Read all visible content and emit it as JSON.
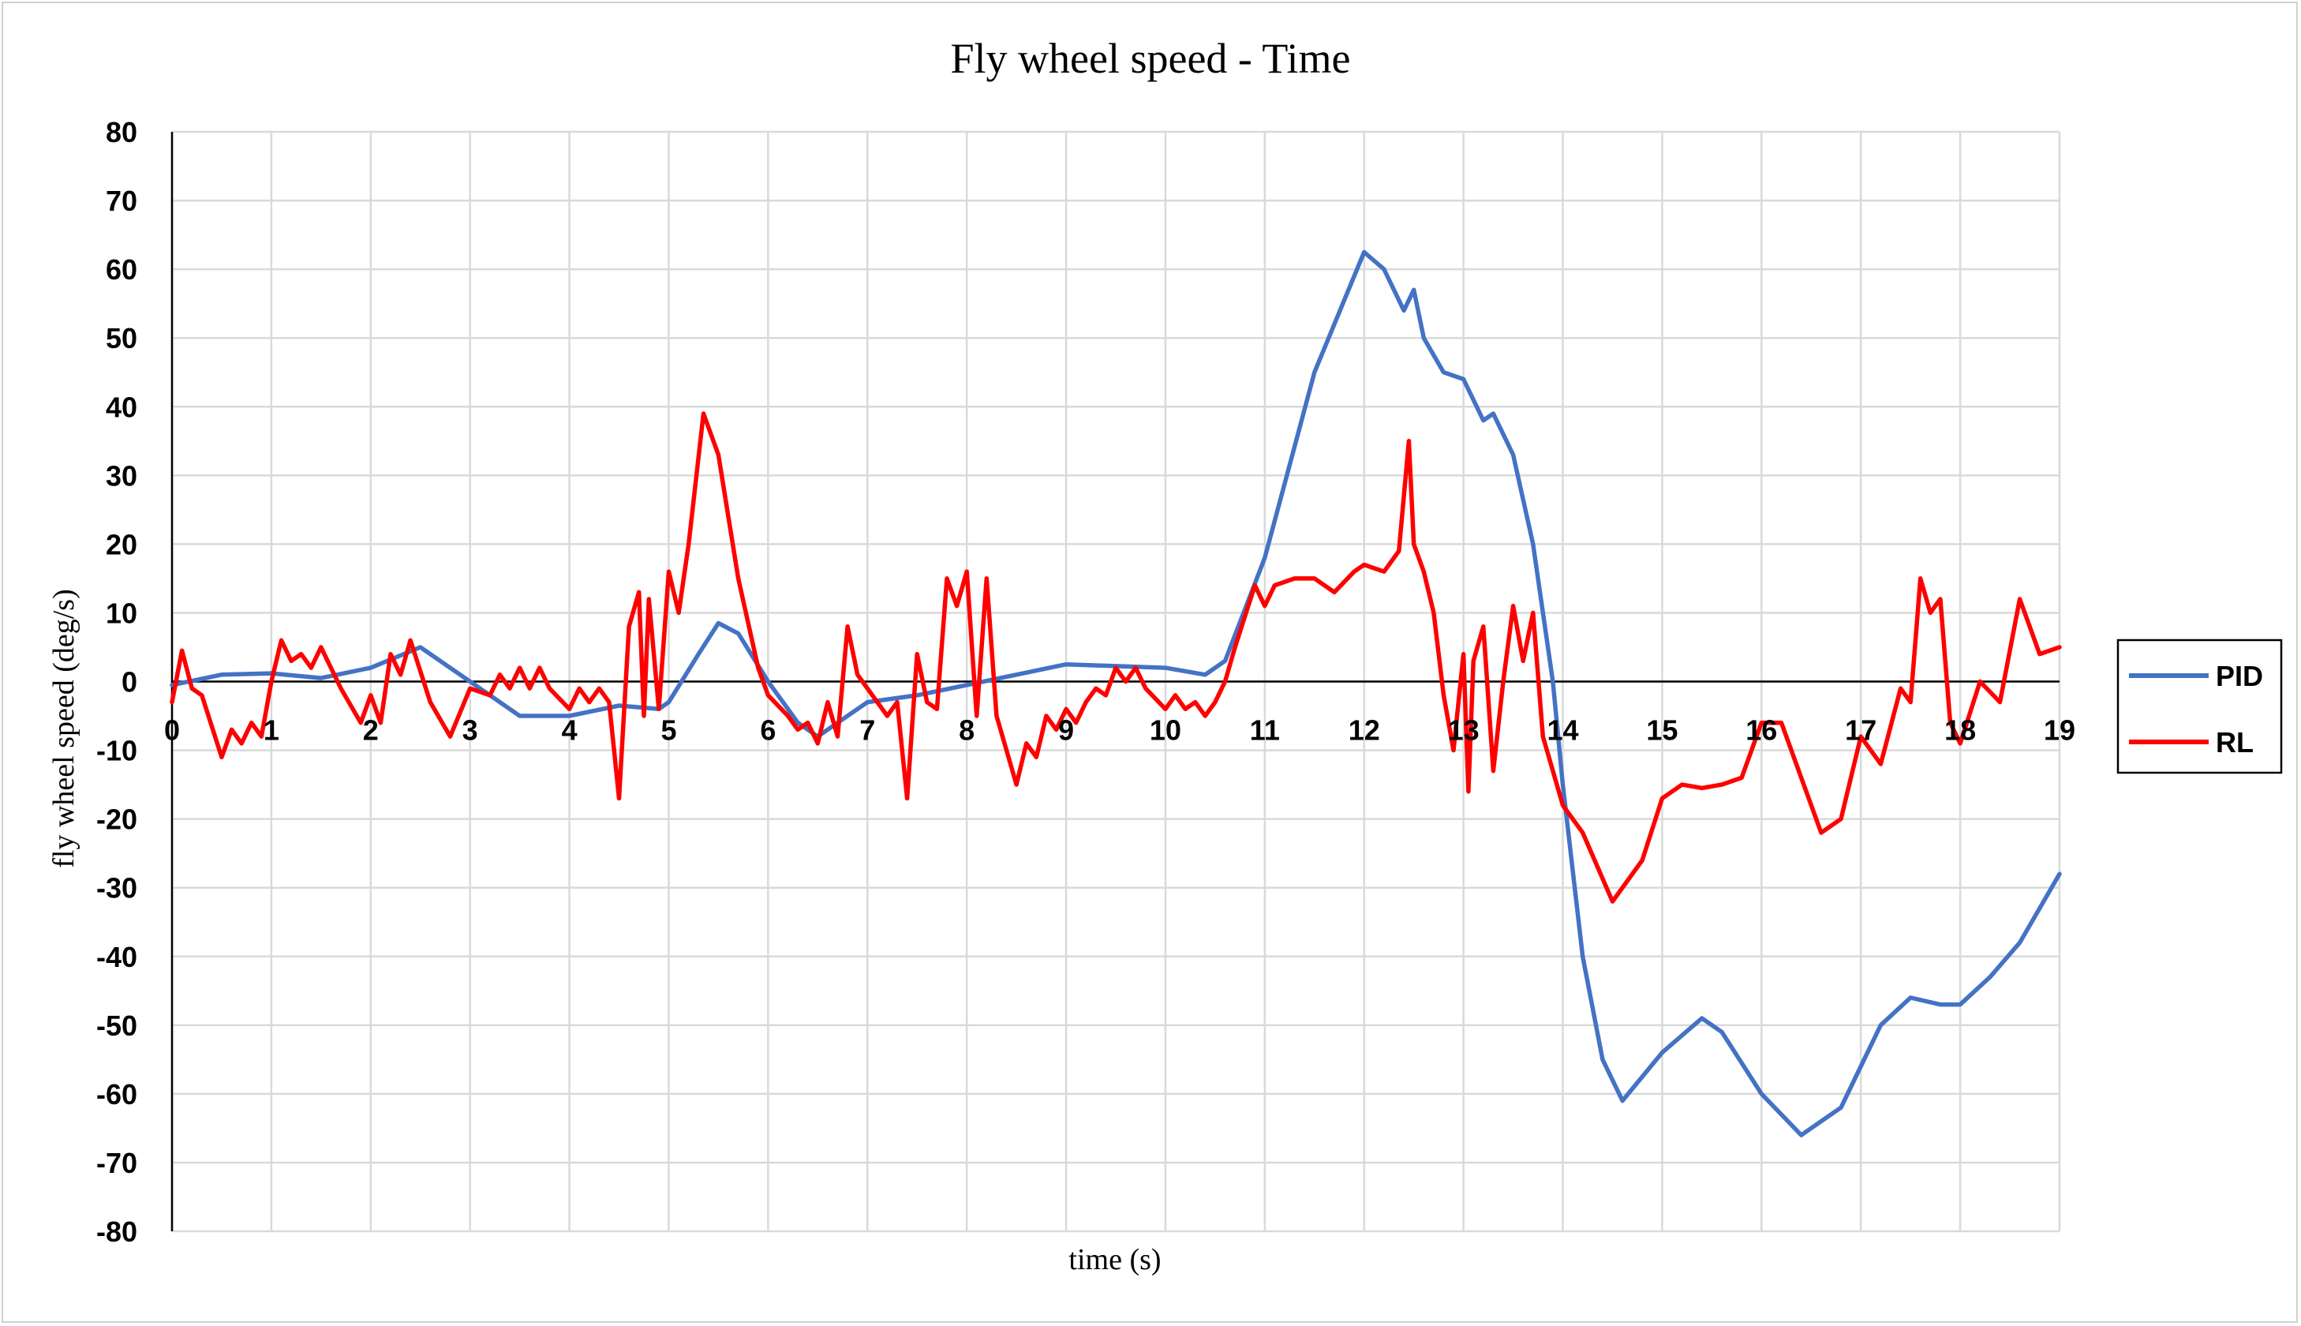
{
  "chart_data": {
    "type": "line",
    "title": "Fly wheel speed - Time",
    "xlabel": "time (s)",
    "ylabel": "fly wheel speed (deg/s)",
    "xlim": [
      0,
      19
    ],
    "ylim": [
      -80,
      80
    ],
    "x_ticks": [
      "0",
      "1",
      "2",
      "3",
      "4",
      "5",
      "6",
      "7",
      "8",
      "9",
      "10",
      "11",
      "12",
      "13",
      "14",
      "15",
      "16",
      "17",
      "18",
      "19"
    ],
    "y_ticks": [
      "80",
      "70",
      "60",
      "50",
      "40",
      "30",
      "20",
      "10",
      "0",
      "-10",
      "-20",
      "-30",
      "-40",
      "-50",
      "-60",
      "-70",
      "-80"
    ],
    "grid": true,
    "legend_position": "right",
    "series": [
      {
        "name": "PID",
        "color": "#4472C4",
        "points": [
          [
            0,
            -0.5
          ],
          [
            0.5,
            1
          ],
          [
            1,
            1.2
          ],
          [
            1.5,
            0.5
          ],
          [
            2,
            2
          ],
          [
            2.5,
            5
          ],
          [
            2.8,
            2
          ],
          [
            3,
            0
          ],
          [
            3.5,
            -5
          ],
          [
            4,
            -5
          ],
          [
            4.5,
            -3.5
          ],
          [
            4.9,
            -4
          ],
          [
            5,
            -3
          ],
          [
            5.3,
            4
          ],
          [
            5.5,
            8.5
          ],
          [
            5.7,
            7
          ],
          [
            6,
            0
          ],
          [
            6.3,
            -6
          ],
          [
            6.5,
            -8
          ],
          [
            7,
            -3
          ],
          [
            7.5,
            -2
          ],
          [
            8,
            -0.5
          ],
          [
            8.5,
            1
          ],
          [
            9,
            2.5
          ],
          [
            10,
            2
          ],
          [
            10.4,
            1
          ],
          [
            10.6,
            3
          ],
          [
            11,
            18
          ],
          [
            11.5,
            45
          ],
          [
            12,
            62.5
          ],
          [
            12.2,
            60
          ],
          [
            12.4,
            54
          ],
          [
            12.5,
            57
          ],
          [
            12.6,
            50
          ],
          [
            12.8,
            45
          ],
          [
            13,
            44
          ],
          [
            13.2,
            38
          ],
          [
            13.3,
            39
          ],
          [
            13.5,
            33
          ],
          [
            13.7,
            20
          ],
          [
            13.9,
            0
          ],
          [
            14,
            -15
          ],
          [
            14.2,
            -40
          ],
          [
            14.4,
            -55
          ],
          [
            14.6,
            -61
          ],
          [
            15,
            -54
          ],
          [
            15.4,
            -49
          ],
          [
            15.6,
            -51
          ],
          [
            16,
            -60
          ],
          [
            16.4,
            -66
          ],
          [
            16.8,
            -62
          ],
          [
            17,
            -56
          ],
          [
            17.2,
            -50
          ],
          [
            17.5,
            -46
          ],
          [
            17.8,
            -47
          ],
          [
            18,
            -47
          ],
          [
            18.3,
            -43
          ],
          [
            18.6,
            -38
          ],
          [
            19,
            -28
          ]
        ]
      },
      {
        "name": "RL",
        "color": "#FF0000",
        "points": [
          [
            0,
            -3
          ],
          [
            0.1,
            4.5
          ],
          [
            0.2,
            -1
          ],
          [
            0.3,
            -2
          ],
          [
            0.5,
            -11
          ],
          [
            0.6,
            -7
          ],
          [
            0.7,
            -9
          ],
          [
            0.8,
            -6
          ],
          [
            0.9,
            -8
          ],
          [
            1,
            0
          ],
          [
            1.1,
            6
          ],
          [
            1.2,
            3
          ],
          [
            1.3,
            4
          ],
          [
            1.4,
            2
          ],
          [
            1.5,
            5
          ],
          [
            1.7,
            -1
          ],
          [
            1.9,
            -6
          ],
          [
            2,
            -2
          ],
          [
            2.1,
            -6
          ],
          [
            2.2,
            4
          ],
          [
            2.3,
            1
          ],
          [
            2.4,
            6
          ],
          [
            2.6,
            -3
          ],
          [
            2.8,
            -8
          ],
          [
            3,
            -1
          ],
          [
            3.2,
            -2
          ],
          [
            3.3,
            1
          ],
          [
            3.4,
            -1
          ],
          [
            3.5,
            2
          ],
          [
            3.6,
            -1
          ],
          [
            3.7,
            2
          ],
          [
            3.8,
            -1
          ],
          [
            4,
            -4
          ],
          [
            4.1,
            -1
          ],
          [
            4.2,
            -3
          ],
          [
            4.3,
            -1
          ],
          [
            4.4,
            -3
          ],
          [
            4.5,
            -17
          ],
          [
            4.6,
            8
          ],
          [
            4.7,
            13
          ],
          [
            4.75,
            -5
          ],
          [
            4.8,
            12
          ],
          [
            4.9,
            -4
          ],
          [
            5,
            16
          ],
          [
            5.1,
            10
          ],
          [
            5.2,
            20
          ],
          [
            5.35,
            39
          ],
          [
            5.5,
            33
          ],
          [
            5.7,
            15
          ],
          [
            5.9,
            2
          ],
          [
            6,
            -2
          ],
          [
            6.2,
            -5
          ],
          [
            6.3,
            -7
          ],
          [
            6.4,
            -6
          ],
          [
            6.5,
            -9
          ],
          [
            6.6,
            -3
          ],
          [
            6.7,
            -8
          ],
          [
            6.8,
            8
          ],
          [
            6.9,
            1
          ],
          [
            7,
            -1
          ],
          [
            7.2,
            -5
          ],
          [
            7.3,
            -3
          ],
          [
            7.4,
            -17
          ],
          [
            7.5,
            4
          ],
          [
            7.6,
            -3
          ],
          [
            7.7,
            -4
          ],
          [
            7.8,
            15
          ],
          [
            7.9,
            11
          ],
          [
            8,
            16
          ],
          [
            8.1,
            -5
          ],
          [
            8.2,
            15
          ],
          [
            8.3,
            -5
          ],
          [
            8.5,
            -15
          ],
          [
            8.6,
            -9
          ],
          [
            8.7,
            -11
          ],
          [
            8.8,
            -5
          ],
          [
            8.9,
            -7
          ],
          [
            9,
            -4
          ],
          [
            9.1,
            -6
          ],
          [
            9.2,
            -3
          ],
          [
            9.3,
            -1
          ],
          [
            9.4,
            -2
          ],
          [
            9.5,
            2
          ],
          [
            9.6,
            0
          ],
          [
            9.7,
            2
          ],
          [
            9.8,
            -1
          ],
          [
            10,
            -4
          ],
          [
            10.1,
            -2
          ],
          [
            10.2,
            -4
          ],
          [
            10.3,
            -3
          ],
          [
            10.4,
            -5
          ],
          [
            10.5,
            -3
          ],
          [
            10.6,
            0
          ],
          [
            10.7,
            5
          ],
          [
            10.9,
            14
          ],
          [
            11,
            11
          ],
          [
            11.1,
            14
          ],
          [
            11.3,
            15
          ],
          [
            11.5,
            15
          ],
          [
            11.7,
            13
          ],
          [
            11.9,
            16
          ],
          [
            12,
            17
          ],
          [
            12.2,
            16
          ],
          [
            12.35,
            19
          ],
          [
            12.45,
            35
          ],
          [
            12.5,
            20
          ],
          [
            12.6,
            16
          ],
          [
            12.7,
            10
          ],
          [
            12.8,
            -2
          ],
          [
            12.9,
            -10
          ],
          [
            13,
            4
          ],
          [
            13.05,
            -16
          ],
          [
            13.1,
            3
          ],
          [
            13.2,
            8
          ],
          [
            13.3,
            -13
          ],
          [
            13.4,
            0
          ],
          [
            13.5,
            11
          ],
          [
            13.6,
            3
          ],
          [
            13.7,
            10
          ],
          [
            13.8,
            -8
          ],
          [
            14,
            -18
          ],
          [
            14.2,
            -22
          ],
          [
            14.5,
            -32
          ],
          [
            14.8,
            -26
          ],
          [
            15,
            -17
          ],
          [
            15.2,
            -15
          ],
          [
            15.4,
            -15.5
          ],
          [
            15.6,
            -15
          ],
          [
            15.8,
            -14
          ],
          [
            16,
            -6
          ],
          [
            16.2,
            -6
          ],
          [
            16.4,
            -14
          ],
          [
            16.6,
            -22
          ],
          [
            16.8,
            -20
          ],
          [
            17,
            -8
          ],
          [
            17.2,
            -12
          ],
          [
            17.4,
            -1
          ],
          [
            17.5,
            -3
          ],
          [
            17.6,
            15
          ],
          [
            17.7,
            10
          ],
          [
            17.8,
            12
          ],
          [
            17.9,
            -6
          ],
          [
            18,
            -9
          ],
          [
            18.2,
            0
          ],
          [
            18.4,
            -3
          ],
          [
            18.6,
            12
          ],
          [
            18.8,
            4
          ],
          [
            19,
            5
          ]
        ]
      }
    ]
  }
}
